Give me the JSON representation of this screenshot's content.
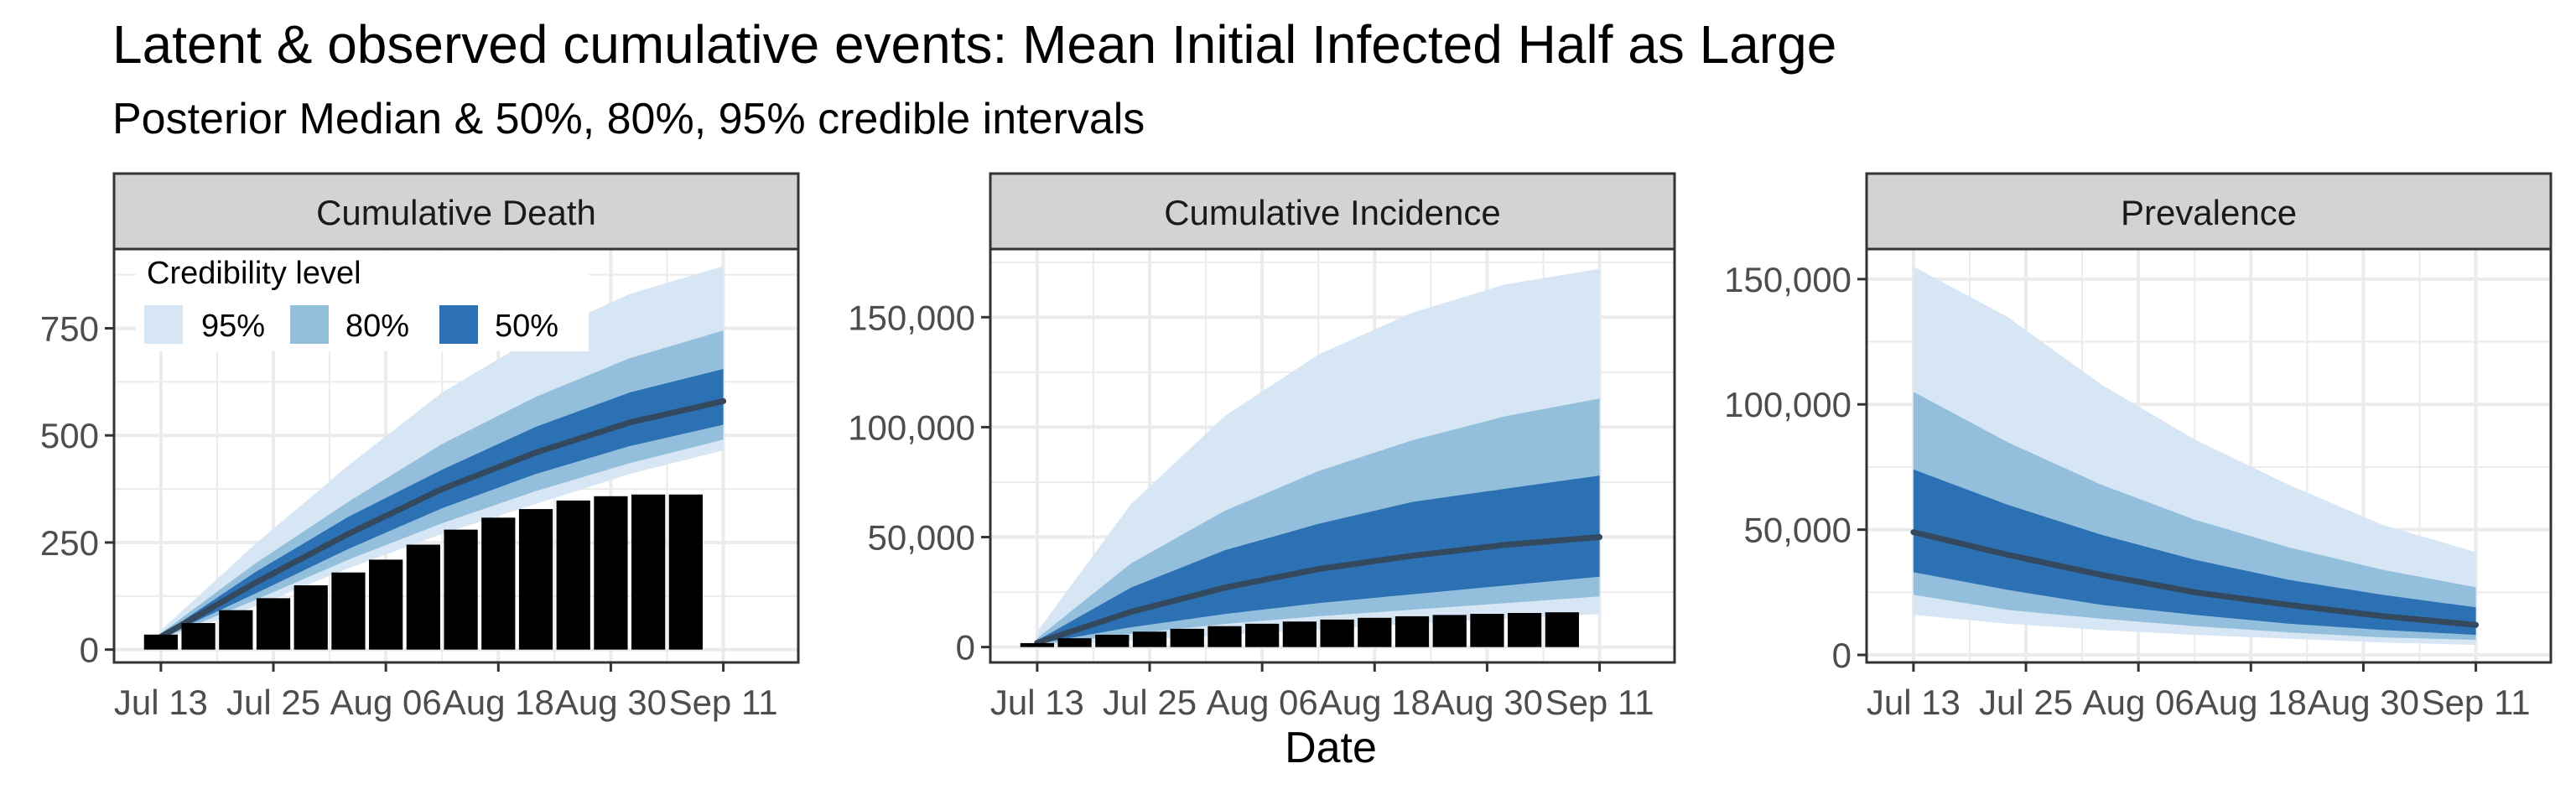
{
  "title": "Latent & observed cumulative events: Mean Initial Infected Half as Large",
  "subtitle": "Posterior Median & 50%, 80%, 95% credible intervals",
  "xlabel": "Date",
  "legend": {
    "title": "Credibility level",
    "items": [
      {
        "label": "95%",
        "color": "#d6e6f4"
      },
      {
        "label": "80%",
        "color": "#93bfdc"
      },
      {
        "label": "50%",
        "color": "#2b71b4"
      }
    ]
  },
  "colors": {
    "ci95": "#d6e6f4",
    "ci80": "#93bfdc",
    "ci50": "#2b71b4",
    "median": "#34495e",
    "bars": "#000000",
    "strip_fill": "#d3d3d3",
    "grid": "#ebebeb"
  },
  "chart_data": [
    {
      "type": "area",
      "panel": "Cumulative Death",
      "x": [
        "2020-07-13",
        "2020-07-23",
        "2020-08-02",
        "2020-08-12",
        "2020-08-22",
        "2020-09-01",
        "2020-09-11"
      ],
      "median": [
        30,
        155,
        270,
        375,
        460,
        530,
        580
      ],
      "ci50": {
        "lower": [
          28,
          130,
          235,
          330,
          410,
          475,
          525
        ],
        "upper": [
          33,
          180,
          310,
          420,
          520,
          600,
          655
        ]
      },
      "ci80": {
        "lower": [
          25,
          115,
          210,
          295,
          370,
          435,
          490
        ],
        "upper": [
          38,
          200,
          345,
          480,
          590,
          680,
          745
        ]
      },
      "ci95": {
        "lower": [
          22,
          100,
          190,
          270,
          340,
          410,
          465
        ],
        "upper": [
          45,
          245,
          430,
          600,
          730,
          830,
          895
        ]
      },
      "bars": {
        "x": [
          "2020-07-13",
          "2020-07-17",
          "2020-07-21",
          "2020-07-25",
          "2020-07-29",
          "2020-08-02",
          "2020-08-06",
          "2020-08-10",
          "2020-08-14",
          "2020-08-18",
          "2020-08-22",
          "2020-08-26",
          "2020-08-30",
          "2020-09-03",
          "2020-09-07"
        ],
        "values": [
          35,
          62,
          92,
          120,
          150,
          180,
          210,
          245,
          280,
          308,
          328,
          348,
          358,
          362,
          362
        ]
      },
      "yticks": [
        0,
        250,
        500,
        750
      ],
      "ytick_labels": [
        "0",
        "250",
        "500",
        "750"
      ],
      "ylim": [
        -30,
        935
      ],
      "xlim": [
        "2020-07-08",
        "2020-09-19"
      ]
    },
    {
      "type": "area",
      "panel": "Cumulative Incidence",
      "x": [
        "2020-07-13",
        "2020-07-23",
        "2020-08-02",
        "2020-08-12",
        "2020-08-22",
        "2020-09-01",
        "2020-09-11"
      ],
      "median": [
        2000,
        16000,
        27000,
        35500,
        41500,
        46500,
        50000
      ],
      "ci50": {
        "lower": [
          1500,
          9000,
          15000,
          20000,
          24000,
          28000,
          32000
        ],
        "upper": [
          3000,
          27000,
          44000,
          56000,
          66000,
          72000,
          78000
        ]
      },
      "ci80": {
        "lower": [
          1000,
          6000,
          10500,
          14000,
          17000,
          20000,
          23000
        ],
        "upper": [
          4000,
          38000,
          62000,
          80000,
          94000,
          105000,
          113000
        ]
      },
      "ci95": {
        "lower": [
          500,
          3000,
          5500,
          8000,
          10500,
          13000,
          15000
        ],
        "upper": [
          7000,
          65000,
          105000,
          133000,
          152000,
          165000,
          172000
        ]
      },
      "bars": {
        "x": [
          "2020-07-13",
          "2020-07-17",
          "2020-07-21",
          "2020-07-25",
          "2020-07-29",
          "2020-08-02",
          "2020-08-06",
          "2020-08-10",
          "2020-08-14",
          "2020-08-18",
          "2020-08-22",
          "2020-08-26",
          "2020-08-30",
          "2020-09-03",
          "2020-09-07"
        ],
        "values": [
          1800,
          4000,
          5600,
          7000,
          8300,
          9500,
          10600,
          11600,
          12500,
          13300,
          14000,
          14600,
          15100,
          15500,
          15800
        ]
      },
      "yticks": [
        0,
        50000,
        100000,
        150000
      ],
      "ytick_labels": [
        "0",
        "50,000",
        "100,000",
        "150,000"
      ],
      "ylim": [
        -7000,
        181000
      ],
      "xlim": [
        "2020-07-08",
        "2020-09-19"
      ]
    },
    {
      "type": "area",
      "panel": "Prevalence",
      "x": [
        "2020-07-13",
        "2020-07-23",
        "2020-08-02",
        "2020-08-12",
        "2020-08-22",
        "2020-09-01",
        "2020-09-11"
      ],
      "median": [
        49000,
        40000,
        32000,
        25000,
        20000,
        15500,
        12000
      ],
      "ci50": {
        "lower": [
          33000,
          26000,
          20000,
          16000,
          12500,
          10000,
          8000
        ],
        "upper": [
          74000,
          60000,
          48000,
          38000,
          30000,
          24000,
          19000
        ]
      },
      "ci80": {
        "lower": [
          24000,
          18000,
          14500,
          11500,
          9000,
          7000,
          6000
        ],
        "upper": [
          105000,
          85000,
          68000,
          54000,
          43000,
          34000,
          27000
        ]
      },
      "ci95": {
        "lower": [
          16000,
          12500,
          10000,
          8000,
          6500,
          5000,
          4000
        ],
        "upper": [
          155000,
          135000,
          108000,
          86000,
          68000,
          52000,
          41000
        ]
      },
      "yticks": [
        0,
        50000,
        100000,
        150000
      ],
      "ytick_labels": [
        "0",
        "50,000",
        "100,000",
        "150,000"
      ],
      "ylim": [
        -3000,
        162000
      ],
      "xlim": [
        "2020-07-08",
        "2020-09-19"
      ]
    }
  ],
  "xticks": [
    "2020-07-13",
    "2020-07-25",
    "2020-08-06",
    "2020-08-18",
    "2020-08-30",
    "2020-09-11"
  ],
  "xtick_labels": [
    "Jul 13",
    "Jul 25",
    "Aug 06",
    "Aug 18",
    "Aug 30",
    "Sep 11"
  ]
}
